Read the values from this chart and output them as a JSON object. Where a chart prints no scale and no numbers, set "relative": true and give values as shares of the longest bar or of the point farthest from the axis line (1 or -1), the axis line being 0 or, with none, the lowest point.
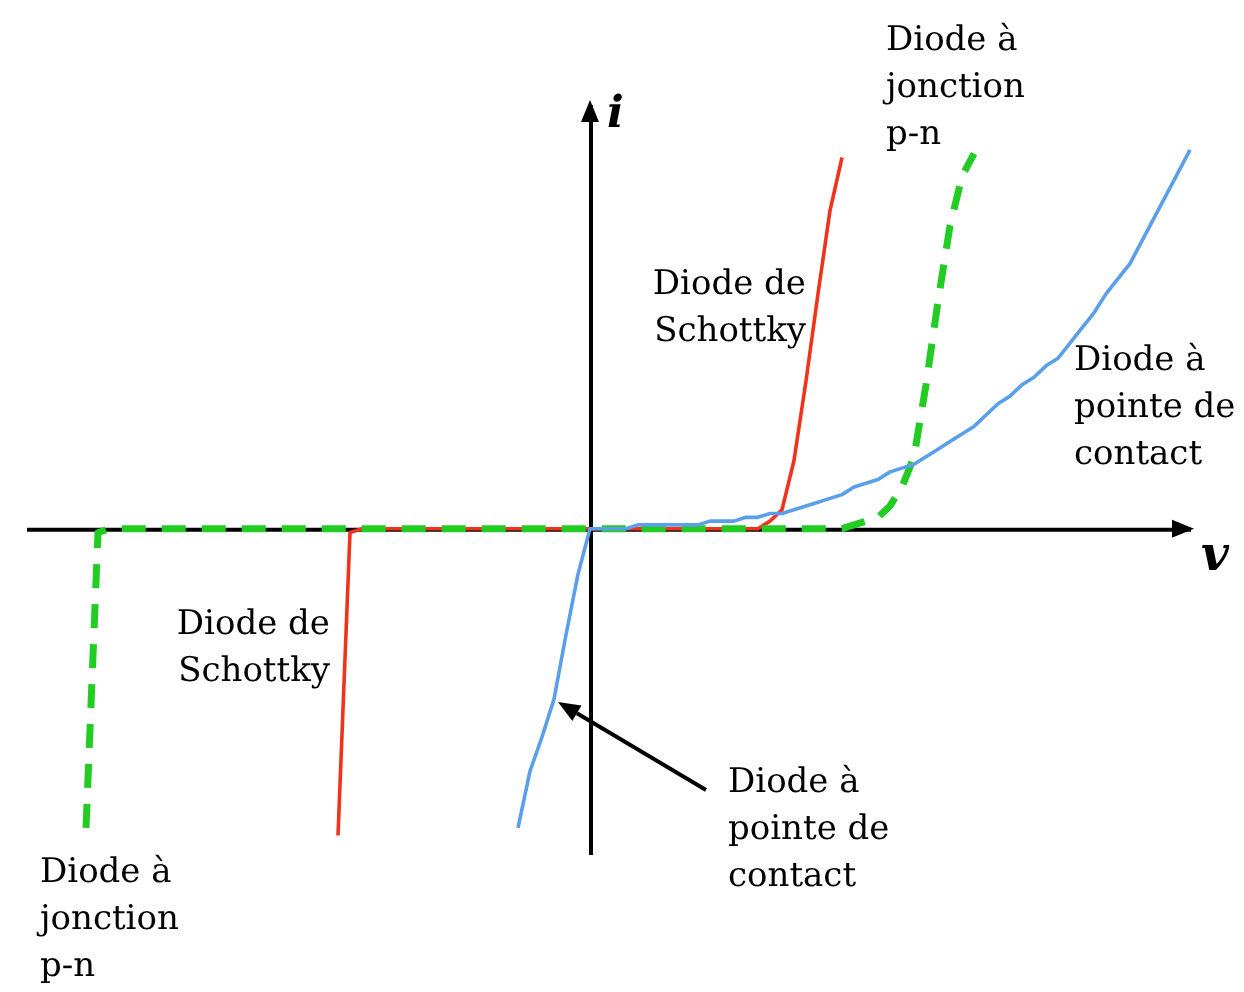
{
  "chart_data": {
    "type": "line",
    "relative": true,
    "xlabel": "v",
    "ylabel": "i",
    "categories": [
      null,
      null,
      null,
      null,
      null,
      null,
      null,
      null,
      null,
      null,
      null,
      null,
      null,
      null,
      null,
      null,
      null,
      null,
      null,
      null,
      null,
      null,
      null,
      null,
      null,
      null,
      null,
      null,
      null,
      null,
      null,
      null,
      null,
      null,
      null,
      null,
      null,
      null,
      null,
      null,
      null,
      null,
      null,
      null,
      null,
      null,
      null,
      null,
      null,
      null,
      null,
      null,
      null,
      null,
      null,
      null,
      null,
      null,
      null,
      null,
      null,
      null,
      null,
      null,
      null,
      null,
      null,
      null,
      null,
      null,
      null,
      null,
      null,
      null,
      null,
      null,
      null,
      null,
      null,
      null,
      null,
      null,
      null,
      null,
      null,
      null,
      null,
      null,
      null,
      null,
      null,
      null,
      null,
      null,
      null,
      null,
      null,
      null
    ],
    "series": [
      {
        "name": "Diode de Schottky",
        "color": "#f0341c",
        "line_style": "solid",
        "values": [
          null,
          null,
          null,
          null,
          null,
          null,
          null,
          null,
          null,
          null,
          null,
          null,
          null,
          null,
          null,
          null,
          null,
          null,
          null,
          null,
          null,
          null,
          null,
          null,
          null,
          null,
          -0.81,
          -0.01,
          0,
          0,
          0,
          0,
          0,
          0,
          0,
          0,
          0,
          0,
          0,
          0,
          0,
          0,
          0,
          0,
          0,
          0,
          0,
          0,
          0,
          0,
          0,
          0,
          0,
          0,
          0,
          0,
          0,
          0,
          0,
          0,
          0,
          0,
          0.02,
          0.05,
          0.18,
          0.39,
          0.62,
          0.84,
          0.98,
          null,
          null,
          null,
          null,
          null,
          null,
          null,
          null,
          null,
          null,
          null,
          null,
          null,
          null,
          null,
          null,
          null,
          null,
          null,
          null,
          null,
          null,
          null,
          null,
          null,
          null,
          null,
          null,
          null
        ]
      },
      {
        "name": "Diode à jonction p-n",
        "color": "#22cc22",
        "line_style": "dashed",
        "values": [
          null,
          null,
          null,
          null,
          null,
          -0.79,
          -0.01,
          0,
          0,
          0,
          0,
          0,
          0,
          0,
          0,
          0,
          0,
          0,
          0,
          0,
          0,
          0,
          0,
          0,
          0,
          0,
          0,
          0,
          0,
          0,
          0,
          0,
          0,
          0,
          0,
          0,
          0,
          0,
          0,
          0,
          0,
          0,
          0,
          0,
          0,
          0,
          0,
          0,
          0,
          0,
          0,
          0,
          0,
          0,
          0,
          0,
          0,
          0,
          0,
          0,
          0,
          0,
          0,
          0,
          0,
          0,
          0,
          0,
          0,
          0.01,
          0.02,
          0.03,
          0.06,
          0.11,
          0.19,
          0.38,
          0.6,
          0.8,
          0.93,
          0.99,
          null,
          null,
          null,
          null,
          null,
          null,
          null,
          null,
          null,
          null,
          null,
          null,
          null,
          null,
          null,
          null,
          null,
          null
        ]
      },
      {
        "name": "Diode à pointe de contact",
        "color": "#5b9ee9",
        "line_style": "solid",
        "values": [
          null,
          null,
          null,
          null,
          null,
          null,
          null,
          null,
          null,
          null,
          null,
          null,
          null,
          null,
          null,
          null,
          null,
          null,
          null,
          null,
          null,
          null,
          null,
          null,
          null,
          null,
          null,
          null,
          null,
          null,
          null,
          null,
          null,
          null,
          null,
          null,
          null,
          null,
          null,
          null,
          null,
          -0.79,
          -0.64,
          -0.55,
          -0.45,
          -0.28,
          -0.12,
          0,
          0,
          0,
          0,
          0.01,
          0.01,
          0.01,
          0.01,
          0.01,
          0.01,
          0.02,
          0.02,
          0.02,
          0.03,
          0.03,
          0.04,
          0.04,
          0.05,
          0.06,
          0.07,
          0.08,
          0.09,
          0.11,
          0.12,
          0.13,
          0.15,
          0.16,
          0.17,
          0.19,
          0.21,
          0.23,
          0.25,
          0.27,
          0.3,
          0.33,
          0.35,
          0.38,
          0.4,
          0.43,
          0.45,
          0.49,
          0.53,
          0.57,
          0.62,
          0.66,
          0.7,
          0.76,
          0.82,
          0.88,
          0.94,
          1
        ]
      }
    ],
    "annotations": [
      "Diode de Schottky",
      "Diode à pointe de contact",
      "Diode à jonction p-n"
    ]
  }
}
